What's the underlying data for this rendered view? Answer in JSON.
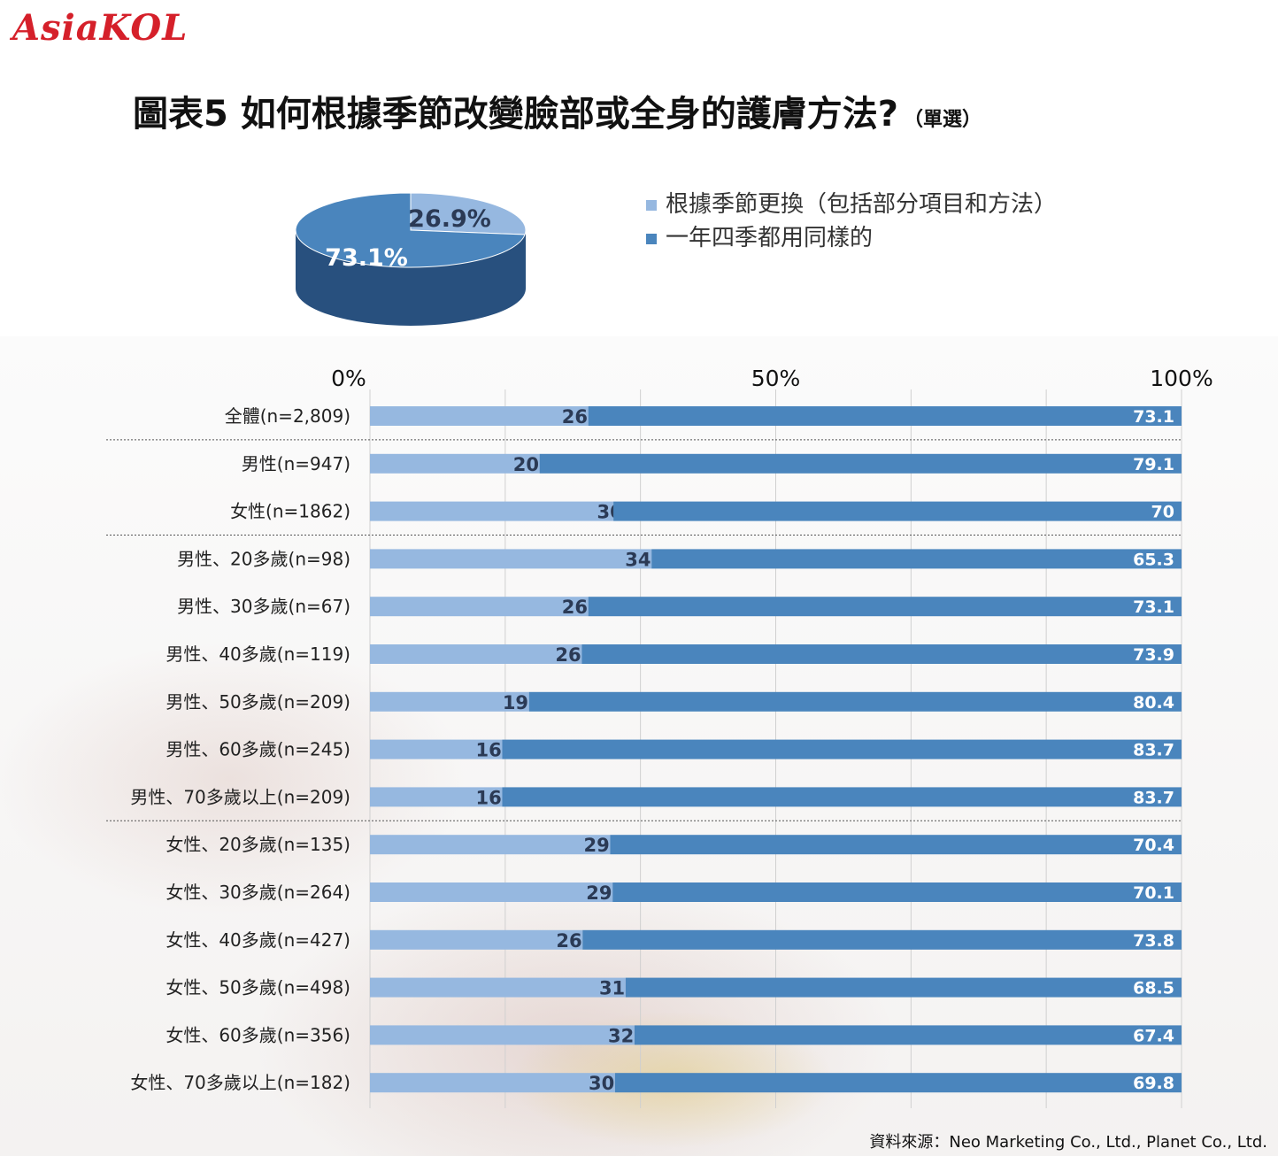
{
  "logo": "AsiaKOL",
  "title": "圖表5   如何根據季節改變臉部或全身的護膚方法?",
  "subtitle": "（單選）",
  "source": "資料來源：Neo Marketing Co., Ltd., Planet Co., Ltd.",
  "colors": {
    "light": "#96b8e0",
    "dark": "#4a85bd",
    "pie_side": "#28507e"
  },
  "legend": [
    {
      "label": "根據季節更換（包括部分項目和方法）",
      "color": "#96b8e0"
    },
    {
      "label": "一年四季都用同樣的",
      "color": "#4a85bd"
    }
  ],
  "chart_data": [
    {
      "type": "pie",
      "values": [
        26.9,
        73.1
      ],
      "labels": [
        "26.9%",
        "73.1%"
      ],
      "series_legend": [
        "根據季節更換（包括部分項目和方法）",
        "一年四季都用同樣的"
      ]
    },
    {
      "type": "bar",
      "orientation": "horizontal",
      "stacked": true,
      "xlim": [
        0,
        100
      ],
      "x_ticks": [
        "0%",
        "50%",
        "100%"
      ],
      "categories": [
        "全體(n=2,809)",
        "男性(n=947)",
        "女性(n=1862)",
        "男性、20多歲(n=98)",
        "男性、30多歲(n=67)",
        "男性、40多歲(n=119)",
        "男性、50多歲(n=209)",
        "男性、60多歲(n=245)",
        "男性、70多歲以上(n=209)",
        "女性、20多歲(n=135)",
        "女性、30多歲(n=264)",
        "女性、40多歲(n=427)",
        "女性、50多歲(n=498)",
        "女性、60多歲(n=356)",
        "女性、70多歲以上(n=182)"
      ],
      "series": [
        {
          "name": "根據季節更換（包括部分項目和方法）",
          "values": [
            26.9,
            20.9,
            30,
            34.7,
            26.9,
            26.1,
            19.6,
            16.3,
            16.3,
            29.6,
            29.9,
            26.2,
            31.5,
            32.6,
            30.2
          ],
          "labels": [
            "26.9",
            "20.9",
            "30",
            "34.7",
            "26.9",
            "26.1",
            "19.6",
            "16.3",
            "16.3",
            "29.6",
            "29.9",
            "26.2",
            "31.5",
            "32.6",
            "30.2"
          ]
        },
        {
          "name": "一年四季都用同樣的",
          "values": [
            73.1,
            79.1,
            70,
            65.3,
            73.1,
            73.9,
            80.4,
            83.7,
            83.7,
            70.4,
            70.1,
            73.8,
            68.5,
            67.4,
            69.8
          ],
          "labels": [
            "73.1",
            "79.1",
            "70",
            "65.3",
            "73.1",
            "73.9",
            "80.4",
            "83.7",
            "83.7",
            "70.4",
            "70.1",
            "73.8",
            "68.5",
            "67.4",
            "69.8"
          ]
        }
      ],
      "group_separators_after": [
        0,
        2,
        8
      ],
      "grid": true
    }
  ]
}
